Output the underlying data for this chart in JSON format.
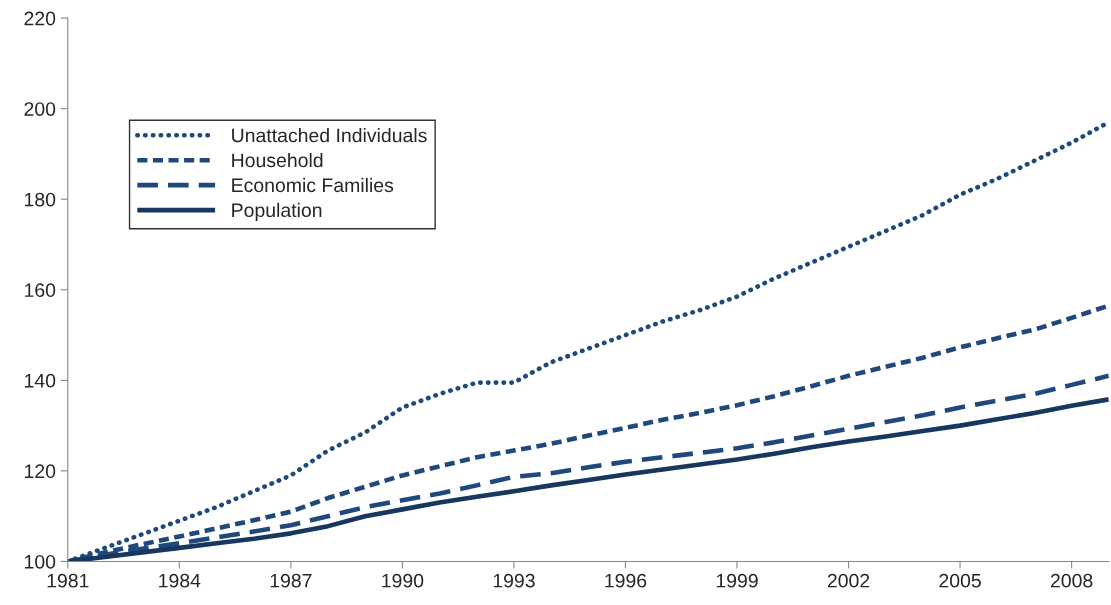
{
  "chart_data": {
    "type": "line",
    "x": [
      1981,
      1982,
      1983,
      1984,
      1985,
      1986,
      1987,
      1988,
      1989,
      1990,
      1991,
      1992,
      1993,
      1994,
      1995,
      1996,
      1997,
      1998,
      1999,
      2000,
      2001,
      2002,
      2003,
      2004,
      2005,
      2006,
      2007,
      2008,
      2009
    ],
    "series": [
      {
        "name": "Unattached Individuals",
        "color": "#1f497d",
        "line_style": "dotted",
        "values": [
          100,
          103,
          106,
          109,
          112,
          115.5,
          119,
          124.5,
          128.5,
          134,
          137,
          139.5,
          139.5,
          144,
          147,
          150,
          153,
          155.5,
          158.5,
          162.5,
          166,
          169.5,
          173,
          176.5,
          181,
          184.5,
          188.5,
          192.5,
          197
        ]
      },
      {
        "name": "Household",
        "color": "#1f497d",
        "line_style": "dashed",
        "values": [
          100,
          102,
          103.8,
          105.5,
          107.3,
          109.1,
          111,
          114,
          116.5,
          119,
          121,
          123,
          124.5,
          126,
          127.8,
          129.5,
          131.3,
          132.8,
          134.5,
          136.5,
          138.7,
          141,
          143,
          145,
          147.3,
          149.3,
          151.2,
          153.8,
          156.5
        ]
      },
      {
        "name": "Economic Families",
        "color": "#1f497d",
        "line_style": "longdash",
        "values": [
          100,
          101.5,
          102.8,
          104,
          105.3,
          106.6,
          108,
          110,
          112,
          113.5,
          115,
          116.8,
          118.7,
          119.5,
          120.8,
          122,
          123,
          124,
          125,
          126.3,
          127.8,
          129.3,
          130.8,
          132.3,
          134,
          135.5,
          137,
          139,
          141
        ]
      },
      {
        "name": "Population",
        "color": "#17375e",
        "line_style": "solid",
        "values": [
          100,
          101,
          102,
          103,
          104,
          105,
          106.2,
          107.8,
          110,
          111.5,
          113,
          114.3,
          115.5,
          116.8,
          118,
          119.2,
          120.3,
          121.4,
          122.5,
          123.8,
          125.2,
          126.5,
          127.6,
          128.8,
          130,
          131.4,
          132.8,
          134.4,
          135.8
        ]
      }
    ],
    "xlim": [
      1981,
      2009
    ],
    "xticks": [
      1981,
      1984,
      1987,
      1990,
      1993,
      1996,
      1999,
      2002,
      2005,
      2008
    ],
    "ylim": [
      100,
      220
    ],
    "yticks": [
      100,
      120,
      140,
      160,
      180,
      200,
      220
    ],
    "grid": false,
    "legend": "top left"
  }
}
